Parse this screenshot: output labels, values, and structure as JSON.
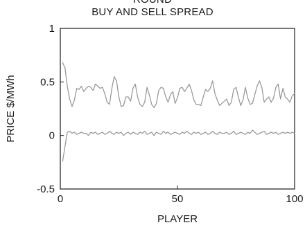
{
  "chart_data": {
    "type": "line",
    "title_lines": [
      "ROUND",
      "BUY AND SELL SPREAD"
    ],
    "xlabel": "PLAYER",
    "ylabel": "PRICE  $/MWh",
    "xlim": [
      0,
      100
    ],
    "ylim": [
      -0.5,
      1
    ],
    "x_ticks": [
      0,
      50,
      100
    ],
    "y_ticks": [
      -0.5,
      0,
      0.5,
      1
    ],
    "y_tick_labels": [
      "-0.5",
      "0",
      "0.5",
      "1"
    ],
    "grid": false,
    "colors": {
      "series": "#9a9a9a",
      "axis": "#1a1a1a"
    },
    "series": [
      {
        "x": [
          1,
          2,
          3,
          4,
          5,
          6,
          7,
          8,
          9,
          10,
          11,
          12,
          13,
          14,
          15,
          16,
          17,
          18,
          19,
          20,
          21,
          22,
          23,
          24,
          25,
          26,
          27,
          28,
          29,
          30,
          31,
          32,
          33,
          34,
          35,
          36,
          37,
          38,
          39,
          40,
          41,
          42,
          43,
          44,
          45,
          46,
          47,
          48,
          49,
          50,
          51,
          52,
          53,
          54,
          55,
          56,
          57,
          58,
          59,
          60,
          61,
          62,
          63,
          64,
          65,
          66,
          67,
          68,
          69,
          70,
          71,
          72,
          73,
          74,
          75,
          76,
          77,
          78,
          79,
          80,
          81,
          82,
          83,
          84,
          85,
          86,
          87,
          88,
          89,
          90,
          91,
          92,
          93,
          94,
          95,
          96,
          97,
          98,
          99,
          100
        ],
        "values": [
          0.68,
          0.63,
          0.46,
          0.34,
          0.27,
          0.33,
          0.44,
          0.43,
          0.46,
          0.41,
          0.44,
          0.46,
          0.45,
          0.42,
          0.48,
          0.46,
          0.44,
          0.45,
          0.39,
          0.31,
          0.29,
          0.44,
          0.55,
          0.51,
          0.36,
          0.27,
          0.28,
          0.36,
          0.36,
          0.32,
          0.44,
          0.48,
          0.36,
          0.29,
          0.27,
          0.31,
          0.45,
          0.38,
          0.29,
          0.26,
          0.3,
          0.42,
          0.45,
          0.44,
          0.36,
          0.31,
          0.38,
          0.41,
          0.3,
          0.35,
          0.44,
          0.45,
          0.41,
          0.44,
          0.48,
          0.42,
          0.33,
          0.29,
          0.29,
          0.28,
          0.36,
          0.43,
          0.41,
          0.44,
          0.51,
          0.39,
          0.33,
          0.28,
          0.3,
          0.32,
          0.34,
          0.28,
          0.31,
          0.43,
          0.45,
          0.36,
          0.28,
          0.33,
          0.45,
          0.35,
          0.29,
          0.3,
          0.38,
          0.46,
          0.51,
          0.45,
          0.31,
          0.34,
          0.36,
          0.31,
          0.35,
          0.45,
          0.48,
          0.34,
          0.44,
          0.36,
          0.34,
          0.31,
          0.37,
          0.39
        ]
      },
      {
        "x": [
          1,
          2,
          3,
          4,
          5,
          6,
          7,
          8,
          9,
          10,
          11,
          12,
          13,
          14,
          15,
          16,
          17,
          18,
          19,
          20,
          21,
          22,
          23,
          24,
          25,
          26,
          27,
          28,
          29,
          30,
          31,
          32,
          33,
          34,
          35,
          36,
          37,
          38,
          39,
          40,
          41,
          42,
          43,
          44,
          45,
          46,
          47,
          48,
          49,
          50,
          51,
          52,
          53,
          54,
          55,
          56,
          57,
          58,
          59,
          60,
          61,
          62,
          63,
          64,
          65,
          66,
          67,
          68,
          69,
          70,
          71,
          72,
          73,
          74,
          75,
          76,
          77,
          78,
          79,
          80,
          81,
          82,
          83,
          84,
          85,
          86,
          87,
          88,
          89,
          90,
          91,
          92,
          93,
          94,
          95,
          96,
          97,
          98,
          99,
          100
        ],
        "values": [
          -0.24,
          -0.1,
          0.03,
          0.04,
          0.02,
          0.03,
          0.01,
          0.02,
          0.03,
          0.02,
          0.02,
          0.0,
          0.03,
          0.02,
          0.03,
          0.01,
          0.02,
          0.03,
          0.01,
          0.02,
          0.04,
          0.02,
          0.01,
          0.03,
          0.02,
          0.03,
          0.0,
          0.02,
          0.03,
          0.01,
          0.03,
          0.02,
          0.01,
          0.03,
          0.02,
          0.04,
          0.01,
          0.02,
          0.03,
          0.0,
          0.03,
          0.02,
          0.01,
          0.04,
          0.02,
          0.03,
          0.01,
          0.02,
          0.03,
          0.02,
          0.01,
          0.03,
          0.02,
          0.04,
          0.02,
          0.01,
          0.03,
          0.02,
          0.03,
          0.01,
          0.02,
          0.03,
          0.01,
          0.02,
          0.04,
          0.02,
          0.01,
          0.03,
          0.02,
          0.02,
          0.03,
          0.01,
          0.02,
          0.04,
          0.01,
          0.02,
          0.03,
          0.02,
          0.01,
          0.03,
          0.02,
          0.05,
          0.03,
          0.01,
          0.02,
          0.03,
          0.04,
          0.01,
          0.02,
          0.03,
          0.02,
          0.03,
          0.01,
          0.02,
          0.03,
          0.02,
          0.03,
          0.02,
          0.03,
          0.02
        ]
      }
    ]
  }
}
